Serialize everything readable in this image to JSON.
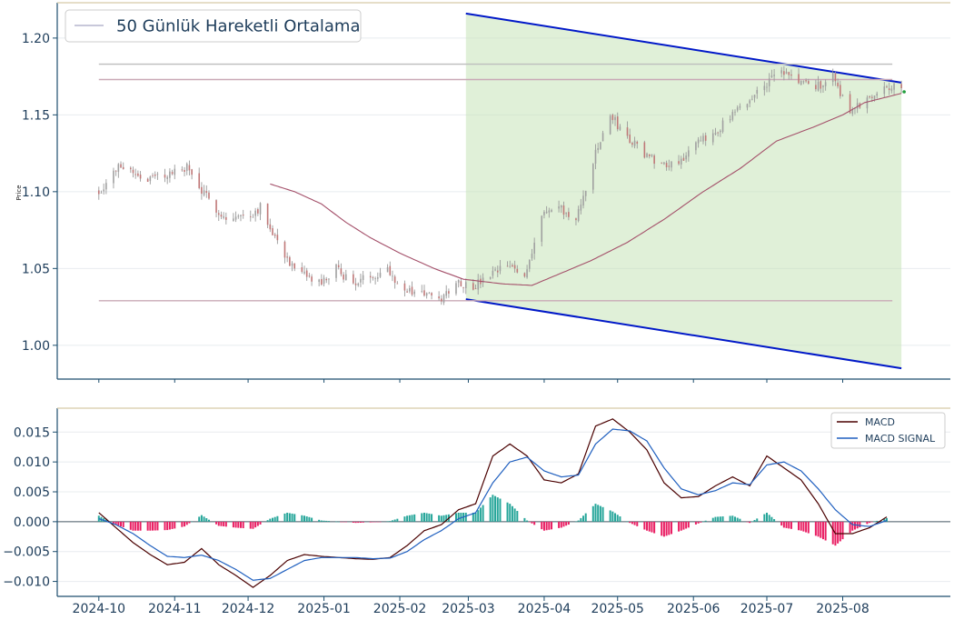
{
  "chart_data": [
    {
      "type": "candlestick",
      "ylabel": "Price",
      "ylim": [
        0.978,
        1.223
      ],
      "yticks": [
        "1.00",
        "1.05",
        "1.10",
        "1.15",
        "1.20"
      ],
      "ytick_values": [
        1.0,
        1.05,
        1.1,
        1.15,
        1.2
      ],
      "legend": {
        "label": "50 Günlük Hareketli Ortalama",
        "position": "top-left"
      },
      "grid": true,
      "price_anchors": [
        [
          "2024-10-01",
          1.1
        ],
        [
          "2024-10-10",
          1.118
        ],
        [
          "2024-10-20",
          1.108
        ],
        [
          "2024-10-31",
          1.112
        ],
        [
          "2024-11-06",
          1.116
        ],
        [
          "2024-11-12",
          1.1
        ],
        [
          "2024-11-22",
          1.082
        ],
        [
          "2024-12-02",
          1.085
        ],
        [
          "2024-12-06",
          1.09
        ],
        [
          "2024-12-13",
          1.068
        ],
        [
          "2024-12-20",
          1.048
        ],
        [
          "2024-12-31",
          1.04
        ],
        [
          "2025-01-06",
          1.05
        ],
        [
          "2025-01-13",
          1.04
        ],
        [
          "2025-01-20",
          1.045
        ],
        [
          "2025-01-27",
          1.05
        ],
        [
          "2025-02-03",
          1.035
        ],
        [
          "2025-02-10",
          1.035
        ],
        [
          "2025-02-17",
          1.028
        ],
        [
          "2025-02-24",
          1.042
        ],
        [
          "2025-03-03",
          1.038
        ],
        [
          "2025-03-10",
          1.045
        ],
        [
          "2025-03-17",
          1.052
        ],
        [
          "2025-03-24",
          1.045
        ],
        [
          "2025-03-31",
          1.085
        ],
        [
          "2025-04-07",
          1.09
        ],
        [
          "2025-04-14",
          1.08
        ],
        [
          "2025-04-21",
          1.12
        ],
        [
          "2025-04-28",
          1.15
        ],
        [
          "2025-05-05",
          1.135
        ],
        [
          "2025-05-12",
          1.125
        ],
        [
          "2025-05-19",
          1.118
        ],
        [
          "2025-05-26",
          1.12
        ],
        [
          "2025-06-02",
          1.13
        ],
        [
          "2025-06-09",
          1.138
        ],
        [
          "2025-06-16",
          1.148
        ],
        [
          "2025-06-23",
          1.158
        ],
        [
          "2025-06-30",
          1.17
        ],
        [
          "2025-07-07",
          1.178
        ],
        [
          "2025-07-14",
          1.172
        ],
        [
          "2025-07-21",
          1.168
        ],
        [
          "2025-07-28",
          1.175
        ],
        [
          "2025-08-04",
          1.152
        ],
        [
          "2025-08-11",
          1.16
        ],
        [
          "2025-08-18",
          1.17
        ],
        [
          "2025-08-25",
          1.166
        ]
      ],
      "moving_average_50": [
        [
          "2024-12-10",
          1.105
        ],
        [
          "2024-12-20",
          1.1
        ],
        [
          "2024-12-31",
          1.092
        ],
        [
          "2025-01-10",
          1.08
        ],
        [
          "2025-01-20",
          1.07
        ],
        [
          "2025-02-01",
          1.06
        ],
        [
          "2025-02-15",
          1.05
        ],
        [
          "2025-02-27",
          1.043
        ],
        [
          "2025-03-15",
          1.04
        ],
        [
          "2025-03-27",
          1.039
        ],
        [
          "2025-04-05",
          1.045
        ],
        [
          "2025-04-20",
          1.055
        ],
        [
          "2025-05-05",
          1.067
        ],
        [
          "2025-05-20",
          1.082
        ],
        [
          "2025-06-05",
          1.1
        ],
        [
          "2025-06-20",
          1.115
        ],
        [
          "2025-07-05",
          1.133
        ],
        [
          "2025-07-20",
          1.142
        ],
        [
          "2025-08-01",
          1.15
        ],
        [
          "2025-08-10",
          1.158
        ],
        [
          "2025-08-25",
          1.164
        ]
      ],
      "horizontal_levels": [
        1.183,
        1.173,
        1.029
      ],
      "level_range": [
        "2024-10-01",
        "2025-08-25"
      ],
      "channel": {
        "start": "2025-02-28",
        "end": "2025-08-25",
        "upper": [
          1.216,
          1.171
        ],
        "lower": [
          1.03,
          0.985
        ]
      }
    },
    {
      "type": "line+bar",
      "ylim": [
        -0.0125,
        0.019
      ],
      "yticks": [
        "−0.010",
        "−0.005",
        "0.000",
        "0.005",
        "0.010",
        "0.015"
      ],
      "ytick_values": [
        -0.01,
        -0.005,
        0.0,
        0.005,
        0.01,
        0.015
      ],
      "legend_position": "top-right",
      "series": [
        {
          "name": "MACD",
          "color": "#4a0000",
          "values": [
            [
              "2024-10-01",
              0.0015
            ],
            [
              "2024-10-08",
              -0.001
            ],
            [
              "2024-10-15",
              -0.0035
            ],
            [
              "2024-10-22",
              -0.0055
            ],
            [
              "2024-10-29",
              -0.0072
            ],
            [
              "2024-11-05",
              -0.0068
            ],
            [
              "2024-11-12",
              -0.0045
            ],
            [
              "2024-11-19",
              -0.0072
            ],
            [
              "2024-11-26",
              -0.009
            ],
            [
              "2024-12-03",
              -0.011
            ],
            [
              "2024-12-10",
              -0.009
            ],
            [
              "2024-12-17",
              -0.0065
            ],
            [
              "2024-12-24",
              -0.0055
            ],
            [
              "2024-12-31",
              -0.0058
            ],
            [
              "2025-01-07",
              -0.006
            ],
            [
              "2025-01-14",
              -0.0062
            ],
            [
              "2025-01-21",
              -0.0063
            ],
            [
              "2025-01-28",
              -0.006
            ],
            [
              "2025-02-04",
              -0.004
            ],
            [
              "2025-02-11",
              -0.0015
            ],
            [
              "2025-02-18",
              -0.0005
            ],
            [
              "2025-02-25",
              0.002
            ],
            [
              "2025-03-04",
              0.003
            ],
            [
              "2025-03-11",
              0.011
            ],
            [
              "2025-03-18",
              0.013
            ],
            [
              "2025-03-25",
              0.011
            ],
            [
              "2025-04-01",
              0.007
            ],
            [
              "2025-04-08",
              0.0065
            ],
            [
              "2025-04-15",
              0.008
            ],
            [
              "2025-04-22",
              0.016
            ],
            [
              "2025-04-29",
              0.0172
            ],
            [
              "2025-05-06",
              0.015
            ],
            [
              "2025-05-13",
              0.012
            ],
            [
              "2025-05-20",
              0.0065
            ],
            [
              "2025-05-27",
              0.004
            ],
            [
              "2025-06-03",
              0.0042
            ],
            [
              "2025-06-10",
              0.006
            ],
            [
              "2025-06-17",
              0.0075
            ],
            [
              "2025-06-24",
              0.006
            ],
            [
              "2025-07-01",
              0.011
            ],
            [
              "2025-07-08",
              0.009
            ],
            [
              "2025-07-15",
              0.007
            ],
            [
              "2025-07-22",
              0.003
            ],
            [
              "2025-07-29",
              -0.002
            ],
            [
              "2025-08-05",
              -0.002
            ],
            [
              "2025-08-12",
              -0.001
            ],
            [
              "2025-08-19",
              0.0008
            ]
          ]
        },
        {
          "name": "MACD SIGNAL",
          "color": "#1f5fbf",
          "values": [
            [
              "2024-10-01",
              0.0005
            ],
            [
              "2024-10-08",
              -0.0005
            ],
            [
              "2024-10-15",
              -0.002
            ],
            [
              "2024-10-22",
              -0.004
            ],
            [
              "2024-10-29",
              -0.0058
            ],
            [
              "2024-11-05",
              -0.006
            ],
            [
              "2024-11-12",
              -0.0056
            ],
            [
              "2024-11-19",
              -0.0065
            ],
            [
              "2024-11-26",
              -0.008
            ],
            [
              "2024-12-03",
              -0.0098
            ],
            [
              "2024-12-10",
              -0.0095
            ],
            [
              "2024-12-17",
              -0.008
            ],
            [
              "2024-12-24",
              -0.0065
            ],
            [
              "2024-12-31",
              -0.006
            ],
            [
              "2025-01-07",
              -0.006
            ],
            [
              "2025-01-14",
              -0.006
            ],
            [
              "2025-01-21",
              -0.0062
            ],
            [
              "2025-01-28",
              -0.0061
            ],
            [
              "2025-02-04",
              -0.005
            ],
            [
              "2025-02-11",
              -0.003
            ],
            [
              "2025-02-18",
              -0.0015
            ],
            [
              "2025-02-25",
              0.0005
            ],
            [
              "2025-03-04",
              0.0015
            ],
            [
              "2025-03-11",
              0.0065
            ],
            [
              "2025-03-18",
              0.01
            ],
            [
              "2025-03-25",
              0.0108
            ],
            [
              "2025-04-01",
              0.0085
            ],
            [
              "2025-04-08",
              0.0075
            ],
            [
              "2025-04-15",
              0.0078
            ],
            [
              "2025-04-22",
              0.013
            ],
            [
              "2025-04-29",
              0.0155
            ],
            [
              "2025-05-06",
              0.0152
            ],
            [
              "2025-05-13",
              0.0135
            ],
            [
              "2025-05-20",
              0.009
            ],
            [
              "2025-05-27",
              0.0055
            ],
            [
              "2025-06-03",
              0.0045
            ],
            [
              "2025-06-10",
              0.0052
            ],
            [
              "2025-06-17",
              0.0065
            ],
            [
              "2025-06-24",
              0.0062
            ],
            [
              "2025-07-01",
              0.0095
            ],
            [
              "2025-07-08",
              0.01
            ],
            [
              "2025-07-15",
              0.0085
            ],
            [
              "2025-07-22",
              0.0055
            ],
            [
              "2025-07-29",
              0.002
            ],
            [
              "2025-08-05",
              -0.0005
            ],
            [
              "2025-08-12",
              -0.0008
            ],
            [
              "2025-08-19",
              0.0002
            ]
          ]
        }
      ],
      "histogram_colors": {
        "positive": "#26a69a",
        "negative": "#e91e63"
      }
    }
  ],
  "x_axis": {
    "range": [
      "2024-09-14",
      "2025-09-14"
    ],
    "ticks": [
      "2024-10",
      "2024-11",
      "2024-12",
      "2025-01",
      "2025-02",
      "2025-03",
      "2025-04",
      "2025-05",
      "2025-06",
      "2025-07",
      "2025-08"
    ],
    "tick_dates": [
      "2024-10-01",
      "2024-11-01",
      "2024-12-01",
      "2025-01-01",
      "2025-02-01",
      "2025-03-01",
      "2025-04-01",
      "2025-05-01",
      "2025-06-01",
      "2025-07-01",
      "2025-08-01"
    ]
  }
}
